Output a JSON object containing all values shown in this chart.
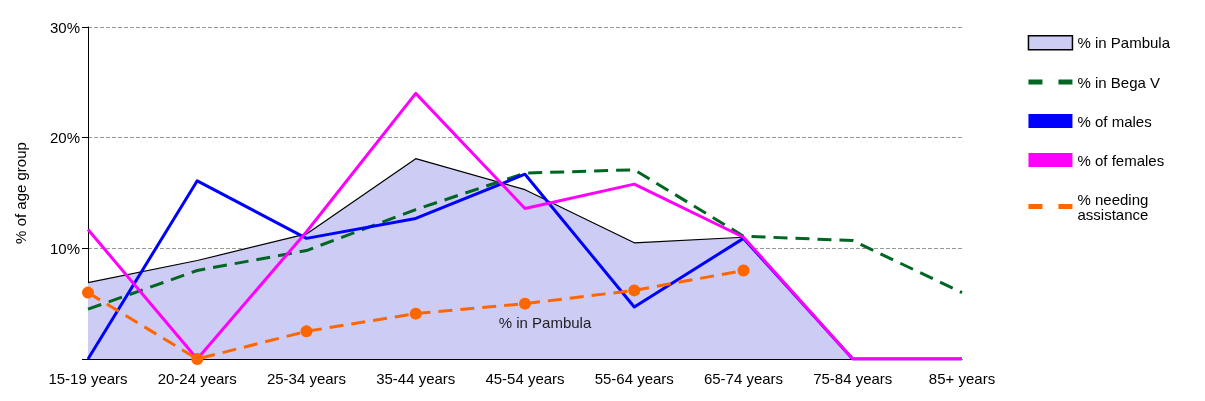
{
  "chart_data": {
    "type": "line",
    "ylabel": "% of age group",
    "categories": [
      "15-19 years",
      "20-24 years",
      "25-34 years",
      "35-44 years",
      "45-54 years",
      "55-64 years",
      "65-74 years",
      "75-84 years",
      "85+ years"
    ],
    "series": [
      {
        "name": "% in Pambula",
        "type": "area",
        "color": "#ccccf5",
        "values": [
          6.9,
          8.9,
          11.3,
          18.1,
          15.3,
          10.5,
          11.0,
          0,
          0
        ]
      },
      {
        "name": "% in Bega V",
        "color": "#006622",
        "line_style": "dashed",
        "values": [
          4.5,
          8.0,
          9.8,
          13.5,
          16.8,
          17.1,
          11.1,
          10.7,
          6.0
        ]
      },
      {
        "name": "% of males",
        "color": "#0000ff",
        "values": [
          0,
          16.1,
          10.9,
          12.7,
          16.7,
          4.7,
          10.9,
          0,
          0
        ]
      },
      {
        "name": "% of females",
        "color": "#ff00ff",
        "values": [
          11.7,
          0,
          11.5,
          24.0,
          13.6,
          15.8,
          11.0,
          0,
          0
        ]
      },
      {
        "name": "% needing assistance",
        "color": "#ff6600",
        "line_style": "dashed",
        "marker": "circle",
        "values": [
          6.0,
          0,
          2.5,
          4.1,
          5.0,
          6.2,
          8.0,
          null,
          null
        ]
      }
    ],
    "ylim": [
      0,
      30
    ],
    "yticks": [
      {
        "value": 0,
        "label": null
      },
      {
        "value": 10,
        "label": "10%"
      },
      {
        "value": 20,
        "label": "20%"
      },
      {
        "value": 30,
        "label": "30%"
      }
    ],
    "grid": "y",
    "legend": "right",
    "annotations": [
      "% in Pambula"
    ]
  }
}
